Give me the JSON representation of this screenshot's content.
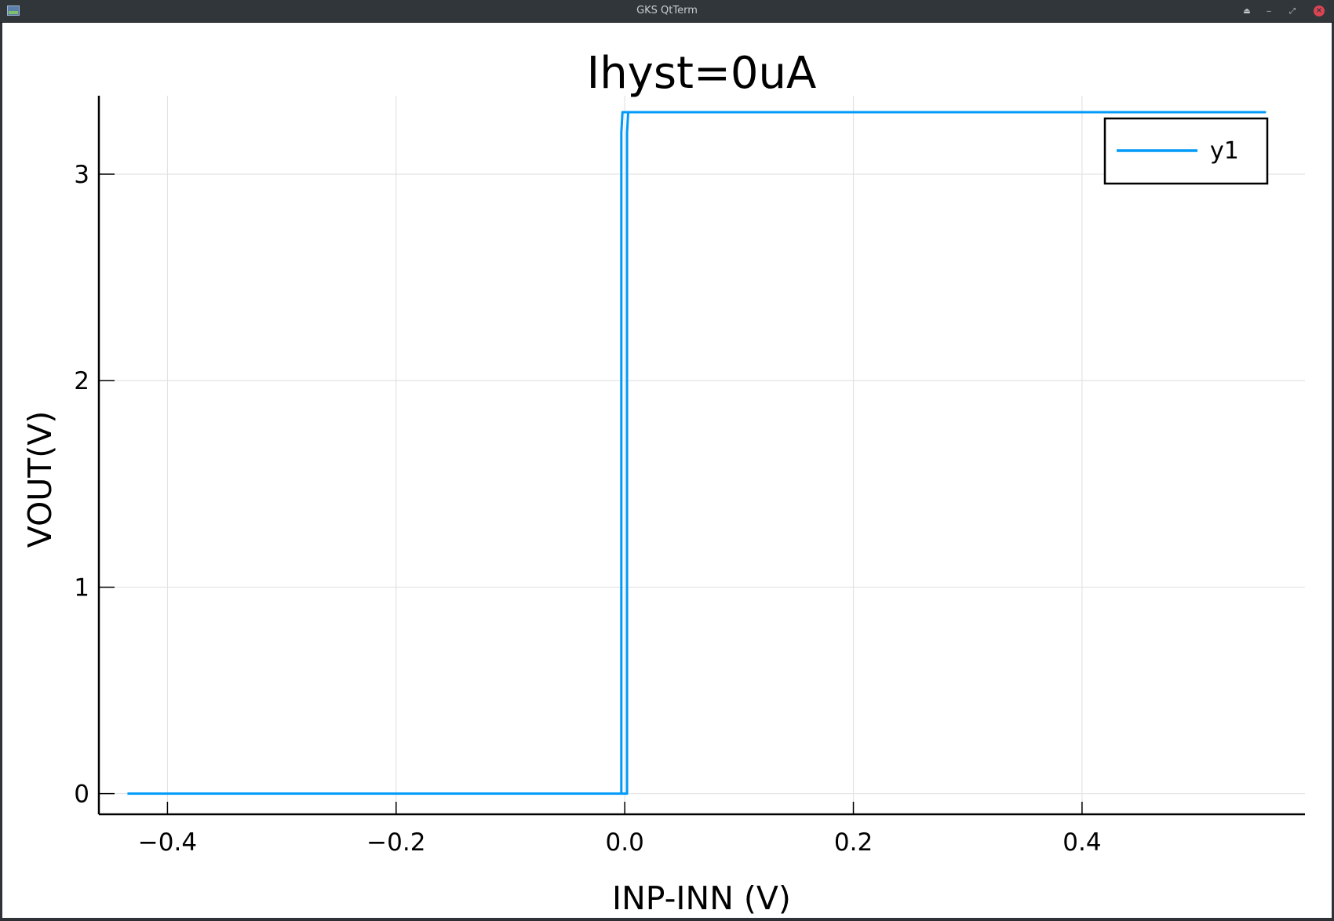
{
  "window": {
    "title": "GKS QtTerm"
  },
  "chart_data": {
    "type": "line",
    "title": "Ihyst=0uA",
    "xlabel": "INP-INN (V)",
    "ylabel": "VOUT(V)",
    "xlim": [
      -0.46,
      0.595
    ],
    "ylim": [
      -0.1,
      3.38
    ],
    "xticks": [
      -0.4,
      -0.2,
      0.0,
      0.2,
      0.4
    ],
    "xtick_labels": [
      "−0.4",
      "−0.2",
      "0.0",
      "0.2",
      "0.4"
    ],
    "yticks": [
      0,
      1,
      2,
      3
    ],
    "ytick_labels": [
      "0",
      "1",
      "2",
      "3"
    ],
    "grid": true,
    "legend_position": "top-right",
    "series": [
      {
        "name": "y1",
        "color": "#009af9",
        "x": [
          -0.435,
          -0.003,
          -0.003,
          -0.002,
          0.56,
          0.003,
          0.002,
          0.002,
          -0.435
        ],
        "y": [
          0,
          0,
          3.2,
          3.3,
          3.3,
          3.3,
          3.2,
          0,
          0
        ]
      }
    ]
  }
}
